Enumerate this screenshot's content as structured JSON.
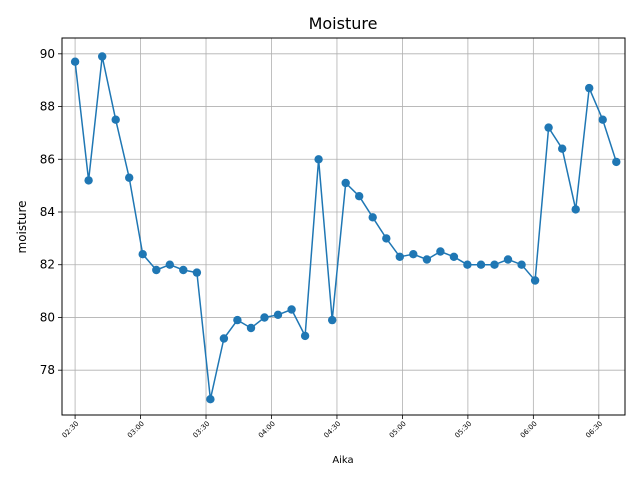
{
  "chart_data": {
    "type": "line",
    "title": "Moisture",
    "xlabel": "Aika",
    "ylabel": "moisture",
    "grid": true,
    "color": "#1f77b4",
    "xlim_minutes": [
      144,
      402
    ],
    "ylim": [
      76.3,
      90.6
    ],
    "yticks": [
      78,
      80,
      82,
      84,
      86,
      88,
      90
    ],
    "xticks": [
      {
        "label": "02:30",
        "minute": 150
      },
      {
        "label": "03:00",
        "minute": 180
      },
      {
        "label": "03:30",
        "minute": 210
      },
      {
        "label": "04:00",
        "minute": 240
      },
      {
        "label": "04:30",
        "minute": 270
      },
      {
        "label": "05:00",
        "minute": 300
      },
      {
        "label": "05:30",
        "minute": 330
      },
      {
        "label": "06:00",
        "minute": 360
      },
      {
        "label": "06:30",
        "minute": 390
      }
    ],
    "series": [
      {
        "values": [
          {
            "t": 150.0,
            "y": 89.7
          },
          {
            "t": 156.2,
            "y": 85.2
          },
          {
            "t": 162.4,
            "y": 89.9
          },
          {
            "t": 168.6,
            "y": 87.5
          },
          {
            "t": 174.8,
            "y": 85.3
          },
          {
            "t": 181.0,
            "y": 82.4
          },
          {
            "t": 187.2,
            "y": 81.8
          },
          {
            "t": 193.4,
            "y": 82.0
          },
          {
            "t": 199.6,
            "y": 81.8
          },
          {
            "t": 205.8,
            "y": 81.7
          },
          {
            "t": 212.0,
            "y": 76.9
          },
          {
            "t": 218.2,
            "y": 79.2
          },
          {
            "t": 224.4,
            "y": 79.9
          },
          {
            "t": 230.6,
            "y": 79.6
          },
          {
            "t": 236.8,
            "y": 80.0
          },
          {
            "t": 243.0,
            "y": 80.1
          },
          {
            "t": 249.2,
            "y": 80.3
          },
          {
            "t": 255.4,
            "y": 79.3
          },
          {
            "t": 261.6,
            "y": 86.0
          },
          {
            "t": 267.8,
            "y": 79.9
          },
          {
            "t": 274.0,
            "y": 85.1
          },
          {
            "t": 280.2,
            "y": 84.6
          },
          {
            "t": 286.4,
            "y": 83.8
          },
          {
            "t": 292.6,
            "y": 83.0
          },
          {
            "t": 298.8,
            "y": 82.3
          },
          {
            "t": 305.0,
            "y": 82.4
          },
          {
            "t": 311.2,
            "y": 82.2
          },
          {
            "t": 317.4,
            "y": 82.5
          },
          {
            "t": 323.6,
            "y": 82.3
          },
          {
            "t": 329.8,
            "y": 82.0
          },
          {
            "t": 336.0,
            "y": 82.0
          },
          {
            "t": 342.2,
            "y": 82.0
          },
          {
            "t": 348.4,
            "y": 82.2
          },
          {
            "t": 354.6,
            "y": 82.0
          },
          {
            "t": 360.8,
            "y": 81.4
          },
          {
            "t": 367.0,
            "y": 87.2
          },
          {
            "t": 373.2,
            "y": 86.4
          },
          {
            "t": 379.4,
            "y": 84.1
          },
          {
            "t": 385.6,
            "y": 88.7
          },
          {
            "t": 391.8,
            "y": 87.5
          },
          {
            "t": 398.0,
            "y": 85.9
          }
        ]
      }
    ]
  }
}
